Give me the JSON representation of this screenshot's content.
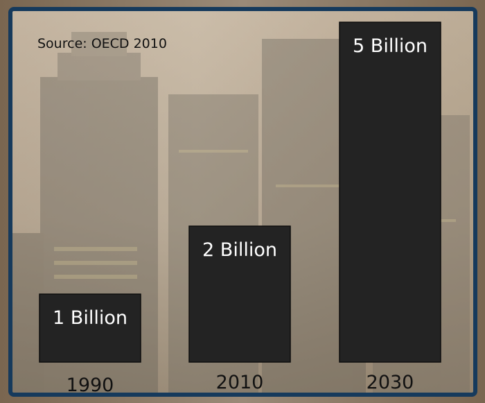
{
  "source_note": "Source: OECD 2010",
  "colors": {
    "bar_fill": "#232323",
    "bar_stroke": "#0c0c0c",
    "bar_label": "#ffffff",
    "tick_label": "#111111",
    "frame_border": "#163a5c"
  },
  "chart_data": {
    "type": "bar",
    "categories": [
      "1990",
      "2010",
      "2030"
    ],
    "values": [
      1,
      2,
      5
    ],
    "data_labels": [
      "1 Billion",
      "2 Billion",
      "5 Billion"
    ],
    "title": "",
    "xlabel": "",
    "ylabel": "",
    "ylim": [
      0,
      5
    ],
    "grid": false,
    "legend": "none"
  }
}
